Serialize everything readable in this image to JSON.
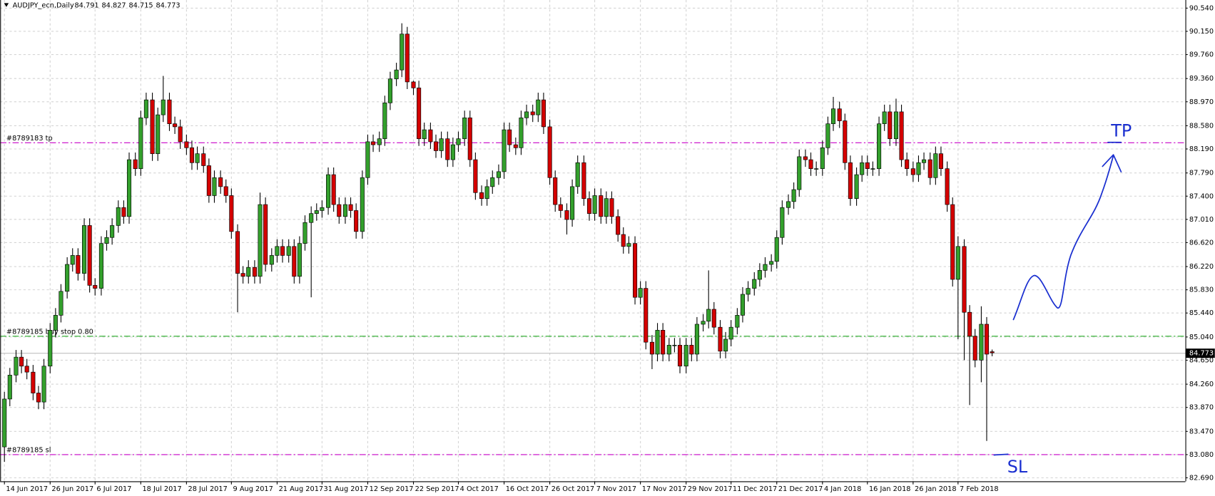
{
  "chart_data": {
    "type": "candlestick",
    "symbol": "AUDJPY_ecn,Daily",
    "up_color": "#33a02c",
    "down_color": "#d40000",
    "grid": true,
    "ylim": [
      82.625,
      90.669
    ],
    "yticks": [
      {
        "value": 90.54,
        "label": "90.540"
      },
      {
        "value": 90.15,
        "label": "90.150"
      },
      {
        "value": 89.76,
        "label": "89.760"
      },
      {
        "value": 89.36,
        "label": "89.360"
      },
      {
        "value": 88.97,
        "label": "88.970"
      },
      {
        "value": 88.58,
        "label": "88.580"
      },
      {
        "value": 88.19,
        "label": "88.190"
      },
      {
        "value": 87.79,
        "label": "87.790"
      },
      {
        "value": 87.4,
        "label": "87.400"
      },
      {
        "value": 87.01,
        "label": "87.010"
      },
      {
        "value": 86.62,
        "label": "86.620"
      },
      {
        "value": 86.22,
        "label": "86.220"
      },
      {
        "value": 85.83,
        "label": "85.830"
      },
      {
        "value": 85.44,
        "label": "85.440"
      },
      {
        "value": 85.04,
        "label": "85.040"
      },
      {
        "value": 84.65,
        "label": "84.650"
      },
      {
        "value": 84.26,
        "label": "84.260"
      },
      {
        "value": 83.87,
        "label": "83.870"
      },
      {
        "value": 83.47,
        "label": "83.470"
      },
      {
        "value": 83.08,
        "label": "83.080"
      },
      {
        "value": 82.69,
        "label": "82.690"
      }
    ],
    "levels": [
      {
        "label": "#8789183 tp",
        "value": 88.29,
        "color": "#c800c8"
      },
      {
        "label": "#8789185 buy stop 0.80",
        "value": 85.06,
        "color": "#22aa22"
      },
      {
        "label": "#8789185 sl",
        "value": 83.08,
        "color": "#c800c8"
      }
    ],
    "annotations": [
      "TP",
      "SL"
    ],
    "categories": [
      "14 Jun 2017",
      null,
      null,
      null,
      null,
      null,
      null,
      null,
      "26 Jun 2017",
      null,
      null,
      null,
      null,
      null,
      null,
      null,
      "6 Jul 2017",
      null,
      null,
      null,
      null,
      null,
      null,
      null,
      "18 Jul 2017",
      null,
      null,
      null,
      null,
      null,
      null,
      null,
      "28 Jul 2017",
      null,
      null,
      null,
      null,
      null,
      null,
      null,
      "9 Aug 2017",
      null,
      null,
      null,
      null,
      null,
      null,
      null,
      "21 Aug 2017",
      null,
      null,
      null,
      null,
      null,
      null,
      null,
      "31 Aug 2017",
      null,
      null,
      null,
      null,
      null,
      null,
      null,
      "12 Sep 2017",
      null,
      null,
      null,
      null,
      null,
      null,
      null,
      "22 Sep 2017",
      null,
      null,
      null,
      null,
      null,
      null,
      null,
      "4 Oct 2017",
      null,
      null,
      null,
      null,
      null,
      null,
      null,
      "16 Oct 2017",
      null,
      null,
      null,
      null,
      null,
      null,
      null,
      "26 Oct 2017",
      null,
      null,
      null,
      null,
      null,
      null,
      null,
      "7 Nov 2017",
      null,
      null,
      null,
      null,
      null,
      null,
      null,
      "17 Nov 2017",
      null,
      null,
      null,
      null,
      null,
      null,
      null,
      "29 Nov 2017",
      null,
      null,
      null,
      null,
      null,
      null,
      null,
      "11 Dec 2017",
      null,
      null,
      null,
      null,
      null,
      null,
      null,
      "21 Dec 2017",
      null,
      null,
      null,
      null,
      null,
      null,
      null,
      "4 Jan 2018",
      null,
      null,
      null,
      null,
      null,
      null,
      null,
      "16 Jan 2018",
      null,
      null,
      null,
      null,
      null,
      null,
      null,
      "26 Jan 2018",
      null,
      null,
      null,
      null,
      null,
      null,
      null,
      "7 Feb 2018",
      null,
      null,
      null,
      null,
      null,
      null
    ],
    "open": [
      83.2,
      84.0,
      84.4,
      84.7,
      84.55,
      84.45,
      84.1,
      83.95,
      84.55,
      85.15,
      85.4,
      85.8,
      86.25,
      86.4,
      86.1,
      86.9,
      85.9,
      85.85,
      86.6,
      86.7,
      86.9,
      87.2,
      87.05,
      88.0,
      87.85,
      88.7,
      89.0,
      88.1,
      88.75,
      89.0,
      88.6,
      88.55,
      88.3,
      88.2,
      87.95,
      88.1,
      87.9,
      87.4,
      87.7,
      87.55,
      87.4,
      86.8,
      86.1,
      86.05,
      86.2,
      86.05,
      87.25,
      86.25,
      86.4,
      86.55,
      86.4,
      86.55,
      86.05,
      86.6,
      86.95,
      87.1,
      87.15,
      87.2,
      87.75,
      87.25,
      87.05,
      87.25,
      87.15,
      86.8,
      87.7,
      88.3,
      88.25,
      88.35,
      88.95,
      89.35,
      89.5,
      90.1,
      89.3,
      89.2,
      88.35,
      88.5,
      88.3,
      88.15,
      88.35,
      88.0,
      88.25,
      88.35,
      88.7,
      88.0,
      87.45,
      87.35,
      87.55,
      87.7,
      87.8,
      88.5,
      88.25,
      88.2,
      88.7,
      88.8,
      88.75,
      89.0,
      88.55,
      87.7,
      87.25,
      87.15,
      87.0,
      87.55,
      87.95,
      87.35,
      87.1,
      87.4,
      87.05,
      87.35,
      87.05,
      86.75,
      86.55,
      86.6,
      85.7,
      85.85,
      84.95,
      84.75,
      85.15,
      84.75,
      84.9,
      84.9,
      84.55,
      84.9,
      84.75,
      85.25,
      85.3,
      85.5,
      85.2,
      84.8,
      85.0,
      85.2,
      85.4,
      85.75,
      85.85,
      86.0,
      86.15,
      86.25,
      86.3,
      86.7,
      87.2,
      87.3,
      87.5,
      88.05,
      88.0,
      87.85,
      87.85,
      88.2,
      88.6,
      88.85,
      88.65,
      87.95,
      87.35,
      87.75,
      87.95,
      87.85,
      87.85,
      88.6,
      88.8,
      88.35,
      88.8,
      88.0,
      87.85,
      87.75,
      87.95,
      88.0,
      87.7,
      88.1,
      87.85,
      87.25,
      86.0,
      86.55,
      85.45,
      85.05,
      84.65,
      85.25,
      84.791
    ],
    "high": [
      84.12,
      84.52,
      84.82,
      84.82,
      84.67,
      84.57,
      84.22,
      84.67,
      85.27,
      85.52,
      85.92,
      86.37,
      86.52,
      86.52,
      87.02,
      87.02,
      86.02,
      86.72,
      86.82,
      87.02,
      87.32,
      87.32,
      88.12,
      88.12,
      88.82,
      89.12,
      89.12,
      88.87,
      89.4,
      89.12,
      88.72,
      88.67,
      88.42,
      88.32,
      88.22,
      88.22,
      88.02,
      87.82,
      87.82,
      87.67,
      87.52,
      86.92,
      86.22,
      86.32,
      86.32,
      87.45,
      87.37,
      86.52,
      86.67,
      86.67,
      86.67,
      86.67,
      86.72,
      87.07,
      87.22,
      87.27,
      87.32,
      87.87,
      87.87,
      87.37,
      87.37,
      87.37,
      87.27,
      87.82,
      88.42,
      88.42,
      88.47,
      89.07,
      89.47,
      89.62,
      90.28,
      90.22,
      89.32,
      89.32,
      88.62,
      88.62,
      88.42,
      88.47,
      88.47,
      88.37,
      88.47,
      88.82,
      88.82,
      88.12,
      87.57,
      87.67,
      87.82,
      87.92,
      88.62,
      88.62,
      88.37,
      88.82,
      88.92,
      88.92,
      89.12,
      89.12,
      88.67,
      87.82,
      87.37,
      87.27,
      87.67,
      88.07,
      88.07,
      87.47,
      87.52,
      87.52,
      87.47,
      87.47,
      87.17,
      86.87,
      86.72,
      86.72,
      85.97,
      85.97,
      85.07,
      85.27,
      85.27,
      85.02,
      85.02,
      85.02,
      85.02,
      85.02,
      85.37,
      85.42,
      86.15,
      85.62,
      85.32,
      85.12,
      85.32,
      85.52,
      85.87,
      85.97,
      86.12,
      86.27,
      86.37,
      86.42,
      86.82,
      87.32,
      87.42,
      87.62,
      88.17,
      88.17,
      88.12,
      87.97,
      88.32,
      88.72,
      89.05,
      88.97,
      88.77,
      88.07,
      87.87,
      88.07,
      88.07,
      87.97,
      88.72,
      88.92,
      88.92,
      89.02,
      88.92,
      88.12,
      87.97,
      88.07,
      88.12,
      88.12,
      88.22,
      88.22,
      87.97,
      87.37,
      86.72,
      86.67,
      85.57,
      85.17,
      85.55,
      85.37,
      84.827
    ],
    "low": [
      82.95,
      83.88,
      84.28,
      84.43,
      84.33,
      83.98,
      83.83,
      83.83,
      84.43,
      85.03,
      85.28,
      85.68,
      86.13,
      85.98,
      85.98,
      85.78,
      85.73,
      85.73,
      86.48,
      86.58,
      86.78,
      86.93,
      86.93,
      87.73,
      87.73,
      88.58,
      87.98,
      87.98,
      88.63,
      88.48,
      88.43,
      88.18,
      88.08,
      87.83,
      87.83,
      87.78,
      87.28,
      87.28,
      87.43,
      87.28,
      86.68,
      85.45,
      85.93,
      85.93,
      85.93,
      85.93,
      86.13,
      86.13,
      86.28,
      86.28,
      86.28,
      85.93,
      85.93,
      86.48,
      85.7,
      86.98,
      87.03,
      87.08,
      87.13,
      86.93,
      86.93,
      87.03,
      86.68,
      86.68,
      87.58,
      88.13,
      88.13,
      88.23,
      88.83,
      89.23,
      89.38,
      89.18,
      89.08,
      88.23,
      88.23,
      88.18,
      88.03,
      88.03,
      87.88,
      87.88,
      88.13,
      88.23,
      87.88,
      87.33,
      87.23,
      87.23,
      87.43,
      87.58,
      87.68,
      88.13,
      88.08,
      88.08,
      88.58,
      88.63,
      88.63,
      88.43,
      87.58,
      87.13,
      87.03,
      86.75,
      86.88,
      87.43,
      87.23,
      86.98,
      86.98,
      86.93,
      86.93,
      86.93,
      86.63,
      86.43,
      86.43,
      85.58,
      85.58,
      84.83,
      84.5,
      84.63,
      84.63,
      84.63,
      84.78,
      84.43,
      84.43,
      84.63,
      84.63,
      85.13,
      85.18,
      85.08,
      84.68,
      84.68,
      84.88,
      85.08,
      85.28,
      85.63,
      85.73,
      85.88,
      86.03,
      86.13,
      86.18,
      86.58,
      87.08,
      87.18,
      87.38,
      87.88,
      87.73,
      87.73,
      87.73,
      88.08,
      88.48,
      88.53,
      87.83,
      87.23,
      87.23,
      87.63,
      87.73,
      87.73,
      87.73,
      88.48,
      88.23,
      88.23,
      87.88,
      87.73,
      87.63,
      87.63,
      87.83,
      87.58,
      87.58,
      87.73,
      87.13,
      85.88,
      85.0,
      84.65,
      83.9,
      84.53,
      84.28,
      83.3,
      84.715
    ],
    "close": [
      84.0,
      84.4,
      84.7,
      84.55,
      84.45,
      84.1,
      83.95,
      84.55,
      85.15,
      85.4,
      85.8,
      86.25,
      86.4,
      86.1,
      86.9,
      85.9,
      85.85,
      86.6,
      86.7,
      86.9,
      87.2,
      87.05,
      88.0,
      87.85,
      88.7,
      89.0,
      88.1,
      88.75,
      89.0,
      88.6,
      88.55,
      88.3,
      88.2,
      87.95,
      88.1,
      87.9,
      87.4,
      87.7,
      87.55,
      87.4,
      86.8,
      86.1,
      86.05,
      86.2,
      86.05,
      87.25,
      86.25,
      86.4,
      86.55,
      86.4,
      86.55,
      86.05,
      86.6,
      86.95,
      87.1,
      87.15,
      87.2,
      87.75,
      87.25,
      87.05,
      87.25,
      87.15,
      86.8,
      87.7,
      88.3,
      88.25,
      88.35,
      88.95,
      89.35,
      89.5,
      90.1,
      89.3,
      89.2,
      88.35,
      88.5,
      88.3,
      88.15,
      88.35,
      88.0,
      88.25,
      88.35,
      88.7,
      88.0,
      87.45,
      87.35,
      87.55,
      87.7,
      87.8,
      88.5,
      88.25,
      88.2,
      88.7,
      88.8,
      88.75,
      89.0,
      88.55,
      87.7,
      87.25,
      87.15,
      87.0,
      87.55,
      87.95,
      87.35,
      87.1,
      87.4,
      87.05,
      87.35,
      87.05,
      86.75,
      86.55,
      86.6,
      85.7,
      85.85,
      84.95,
      84.75,
      85.15,
      84.75,
      84.9,
      84.9,
      84.55,
      84.9,
      84.75,
      85.25,
      85.3,
      85.5,
      85.2,
      84.8,
      85.0,
      85.2,
      85.4,
      85.75,
      85.85,
      86.0,
      86.15,
      86.25,
      86.3,
      86.7,
      87.2,
      87.3,
      87.5,
      88.05,
      88.0,
      87.85,
      87.85,
      88.2,
      88.6,
      88.85,
      88.65,
      87.95,
      87.35,
      87.75,
      87.95,
      87.85,
      87.85,
      88.6,
      88.8,
      88.35,
      88.8,
      88.0,
      87.85,
      87.75,
      87.95,
      88.0,
      87.7,
      88.1,
      87.85,
      87.25,
      86.0,
      86.55,
      85.45,
      85.05,
      84.65,
      85.25,
      84.75,
      84.773
    ]
  }
}
